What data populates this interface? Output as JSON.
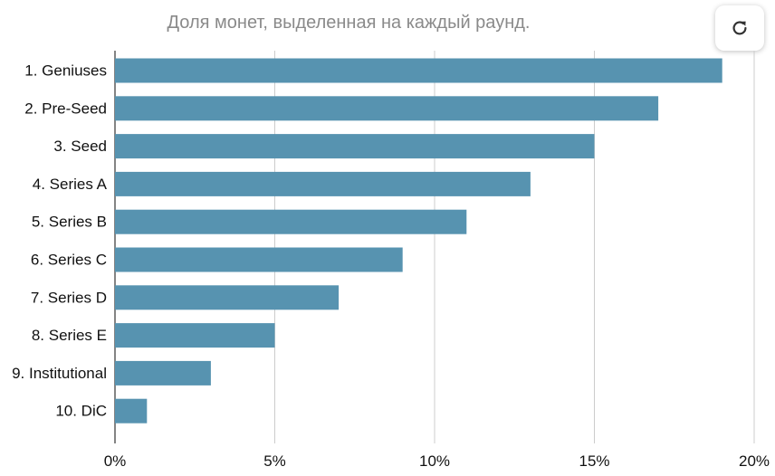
{
  "chart_data": {
    "type": "bar",
    "orientation": "horizontal",
    "title": "Доля монет, выделенная на каждый раунд.",
    "categories": [
      "1. Geniuses",
      "2. Pre-Seed",
      "3. Seed",
      "4. Series A",
      "5. Series B",
      "6. Series C",
      "7. Series D",
      "8. Series E",
      "9. Institutional",
      "10. DiC"
    ],
    "values": [
      19,
      17,
      15,
      13,
      11,
      9,
      7,
      5,
      3,
      1
    ],
    "xlim": [
      0,
      20
    ],
    "x_ticks": [
      0,
      5,
      10,
      15,
      20
    ],
    "x_tick_labels": [
      "0%",
      "5%",
      "10%",
      "15%",
      "20%"
    ],
    "bar_color": "#5793b0",
    "grid": true
  },
  "controls": {
    "refresh_icon": "refresh-icon"
  }
}
